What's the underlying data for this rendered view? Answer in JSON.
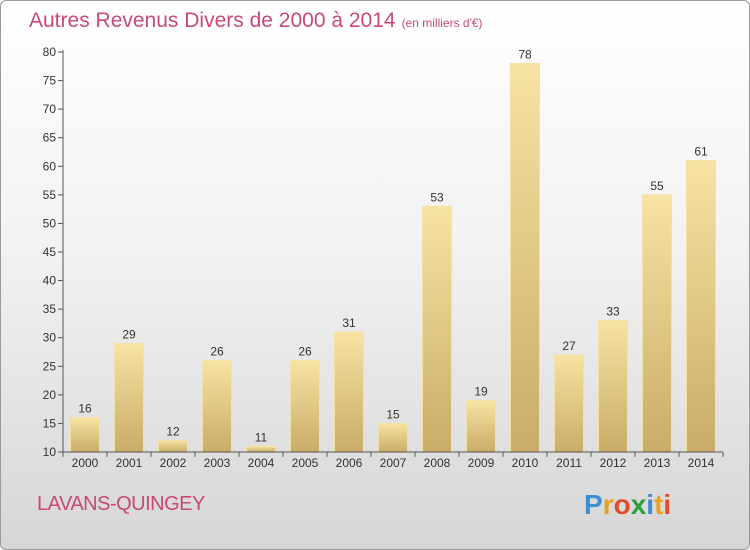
{
  "header": {
    "title": "Autres Revenus Divers de 2000 à 2014",
    "subtitle": "(en milliers d'€)"
  },
  "footer": {
    "city": "LAVANS-QUINGEY",
    "logo_letters": [
      "P",
      "r",
      "o",
      "x",
      "i",
      "t",
      "i"
    ],
    "logo_colors": [
      "#3b8fd4",
      "#e8a21c",
      "#e14d2a",
      "#2f9d3a",
      "#3b8fd4",
      "#e8a21c",
      "#e14d2a"
    ]
  },
  "colors": {
    "title": "#c8497a",
    "bar_light": "#f7e3a3",
    "bar_dark": "#c9ac68",
    "axis": "#555555"
  },
  "chart_data": {
    "type": "bar",
    "categories": [
      "2000",
      "2001",
      "2002",
      "2003",
      "2004",
      "2005",
      "2006",
      "2007",
      "2008",
      "2009",
      "2010",
      "2011",
      "2012",
      "2013",
      "2014"
    ],
    "values": [
      16,
      29,
      12,
      26,
      11,
      26,
      31,
      15,
      53,
      19,
      78,
      27,
      33,
      55,
      61
    ],
    "ylim": [
      10,
      80
    ],
    "yticks": [
      10,
      15,
      20,
      25,
      30,
      35,
      40,
      45,
      50,
      55,
      60,
      65,
      70,
      75,
      80
    ],
    "grid": false,
    "legend": "none"
  }
}
